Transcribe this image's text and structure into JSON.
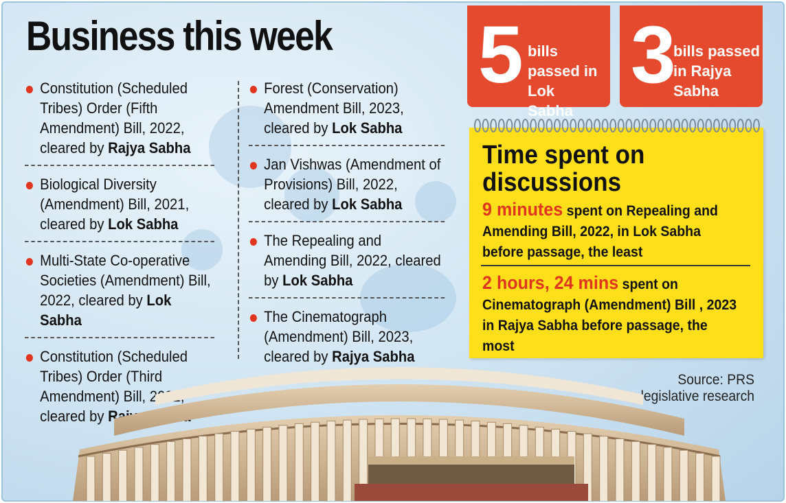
{
  "headline": "Business this week",
  "bills_left": [
    {
      "text": "Constitution (Scheduled Tribes) Order (Fifth Amendment) Bill, 2022, cleared by ",
      "house": "Rajya Sabha"
    },
    {
      "text": "Biological Diversity (Amendment) Bill, 2021, cleared by ",
      "house": "Lok Sabha"
    },
    {
      "text": "Multi-State Co-operative Societies (Amendment) Bill, 2022, cleared by ",
      "house": "Lok Sabha"
    },
    {
      "text": "Constitution (Scheduled Tribes) Order (Third Amendment) Bill, 2022, cleared by ",
      "house": "Rajya Sabha"
    }
  ],
  "bills_right": [
    {
      "text": "Forest (Conservation) Amendment Bill, 2023, cleared by ",
      "house": "Lok Sabha"
    },
    {
      "text": "Jan Vishwas (Amendment of Provisions) Bill, 2022, cleared by ",
      "house": "Lok Sabha"
    },
    {
      "text": "The Repealing and Amending Bill, 2022, cleared by ",
      "house": "Lok Sabha"
    },
    {
      "text": "The Cinematograph (Amendment) Bill, 2023, cleared by ",
      "house": "Rajya Sabha"
    }
  ],
  "stats": {
    "lok_sabha": {
      "number": "5",
      "text": "bills passed in Lok Sabha"
    },
    "rajya_sabha": {
      "number": "3",
      "text": "bills passed in Rajya Sabha"
    }
  },
  "time_spent": {
    "title": "Time spent on discussions",
    "least": {
      "duration": "9 minutes",
      "text": " spent on Repealing and Amending Bill, 2022, in Lok Sabha before passage, the least"
    },
    "most": {
      "duration": "2 hours, 24 mins",
      "text": " spent on Cinematograph (Amendment) Bill , 2023 in Rajya Sabha before passage, the most"
    }
  },
  "source": "Source: PRS legislative research",
  "colors": {
    "accent_red": "#e64a2e",
    "notepad_yellow": "#ffdf1a",
    "background_blue": "#d6e8f4"
  }
}
